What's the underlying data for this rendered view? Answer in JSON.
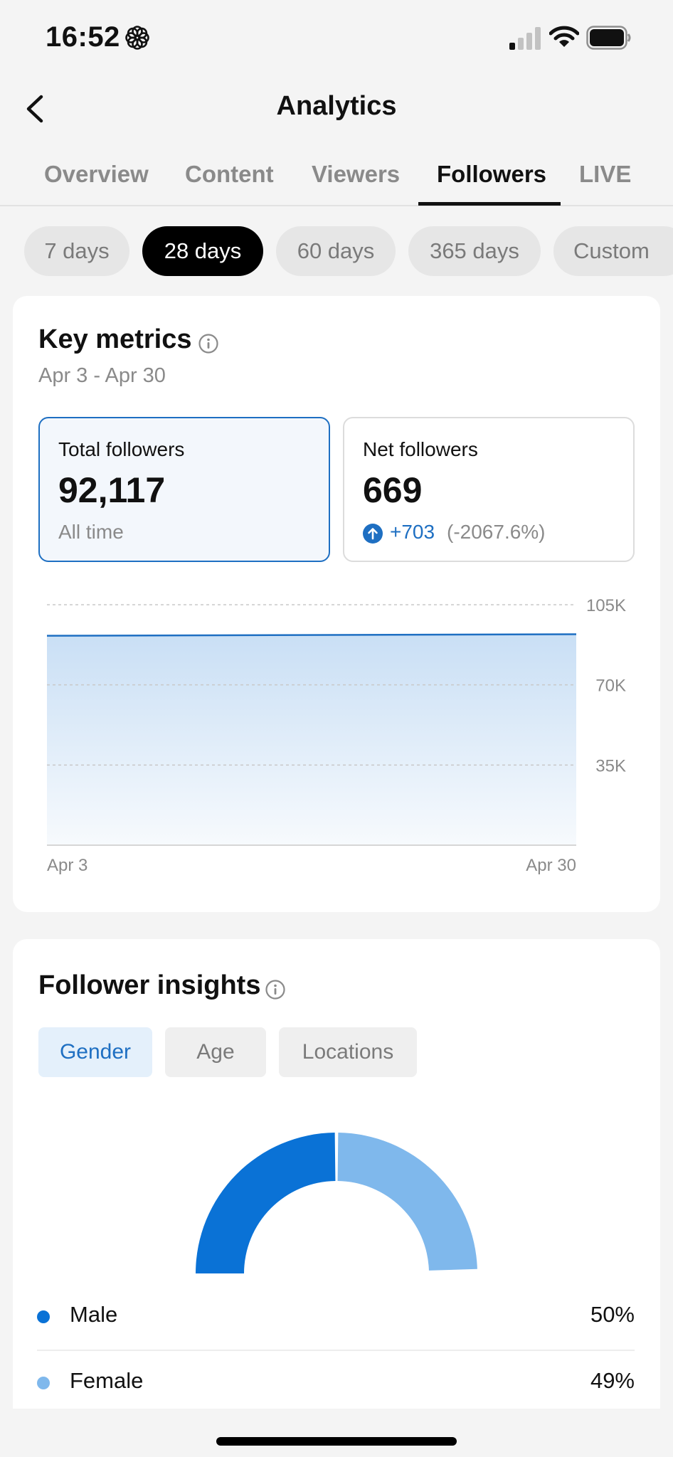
{
  "status_bar": {
    "time": "16:52"
  },
  "header": {
    "title": "Analytics"
  },
  "tabs": [
    {
      "label": "Overview"
    },
    {
      "label": "Content"
    },
    {
      "label": "Viewers"
    },
    {
      "label": "Followers",
      "active": true
    },
    {
      "label": "LIVE"
    }
  ],
  "date_ranges": [
    {
      "label": "7 days"
    },
    {
      "label": "28 days",
      "active": true
    },
    {
      "label": "60 days"
    },
    {
      "label": "365 days"
    },
    {
      "label": "Custom"
    }
  ],
  "key_metrics": {
    "title": "Key metrics",
    "date_range": "Apr 3 - Apr 30",
    "total": {
      "label": "Total followers",
      "value": "92,117",
      "sub": "All time"
    },
    "net": {
      "label": "Net followers",
      "value": "669",
      "delta": "+703",
      "pct": "(-2067.6%)"
    }
  },
  "chart_data": {
    "type": "area",
    "x": [
      "Apr 3",
      "Apr 30"
    ],
    "values": [
      91448,
      92117
    ],
    "ylim": [
      0,
      105000
    ],
    "y_ticks": [
      {
        "value": 105000,
        "label": "105K"
      },
      {
        "value": 70000,
        "label": "70K"
      },
      {
        "value": 35000,
        "label": "35K"
      }
    ],
    "x_labels": [
      "Apr 3",
      "Apr 30"
    ],
    "grid": true,
    "color": "#1e6fc2"
  },
  "insights": {
    "title": "Follower insights",
    "segments": [
      {
        "label": "Gender",
        "active": true
      },
      {
        "label": "Age"
      },
      {
        "label": "Locations"
      }
    ],
    "gender": [
      {
        "label": "Male",
        "value": "50%",
        "share": 50,
        "color": "#0a72d6"
      },
      {
        "label": "Female",
        "value": "49%",
        "share": 49,
        "color": "#7fb8ec"
      }
    ]
  }
}
